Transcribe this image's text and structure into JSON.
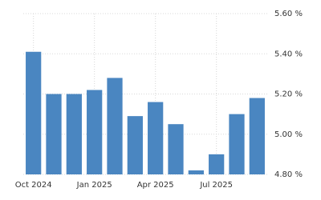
{
  "chart_data": {
    "type": "bar",
    "categories": [
      "Oct 2024",
      null,
      null,
      "Jan 2025",
      null,
      null,
      "Apr 2025",
      null,
      null,
      "Jul 2025",
      null,
      null
    ],
    "values": [
      5.41,
      5.2,
      5.2,
      5.22,
      5.28,
      5.09,
      5.16,
      5.05,
      4.82,
      4.9,
      5.1,
      5.18
    ],
    "color": "#4a86c1",
    "ylim": [
      4.8,
      5.6
    ],
    "yticks": [
      {
        "value": 4.8,
        "label": "4.80 %"
      },
      {
        "value": 5.0,
        "label": "5.00 %"
      },
      {
        "value": 5.2,
        "label": "5.20 %"
      },
      {
        "value": 5.4,
        "label": "5.40 %"
      },
      {
        "value": 5.6,
        "label": "5.60 %"
      }
    ],
    "grid": true
  }
}
